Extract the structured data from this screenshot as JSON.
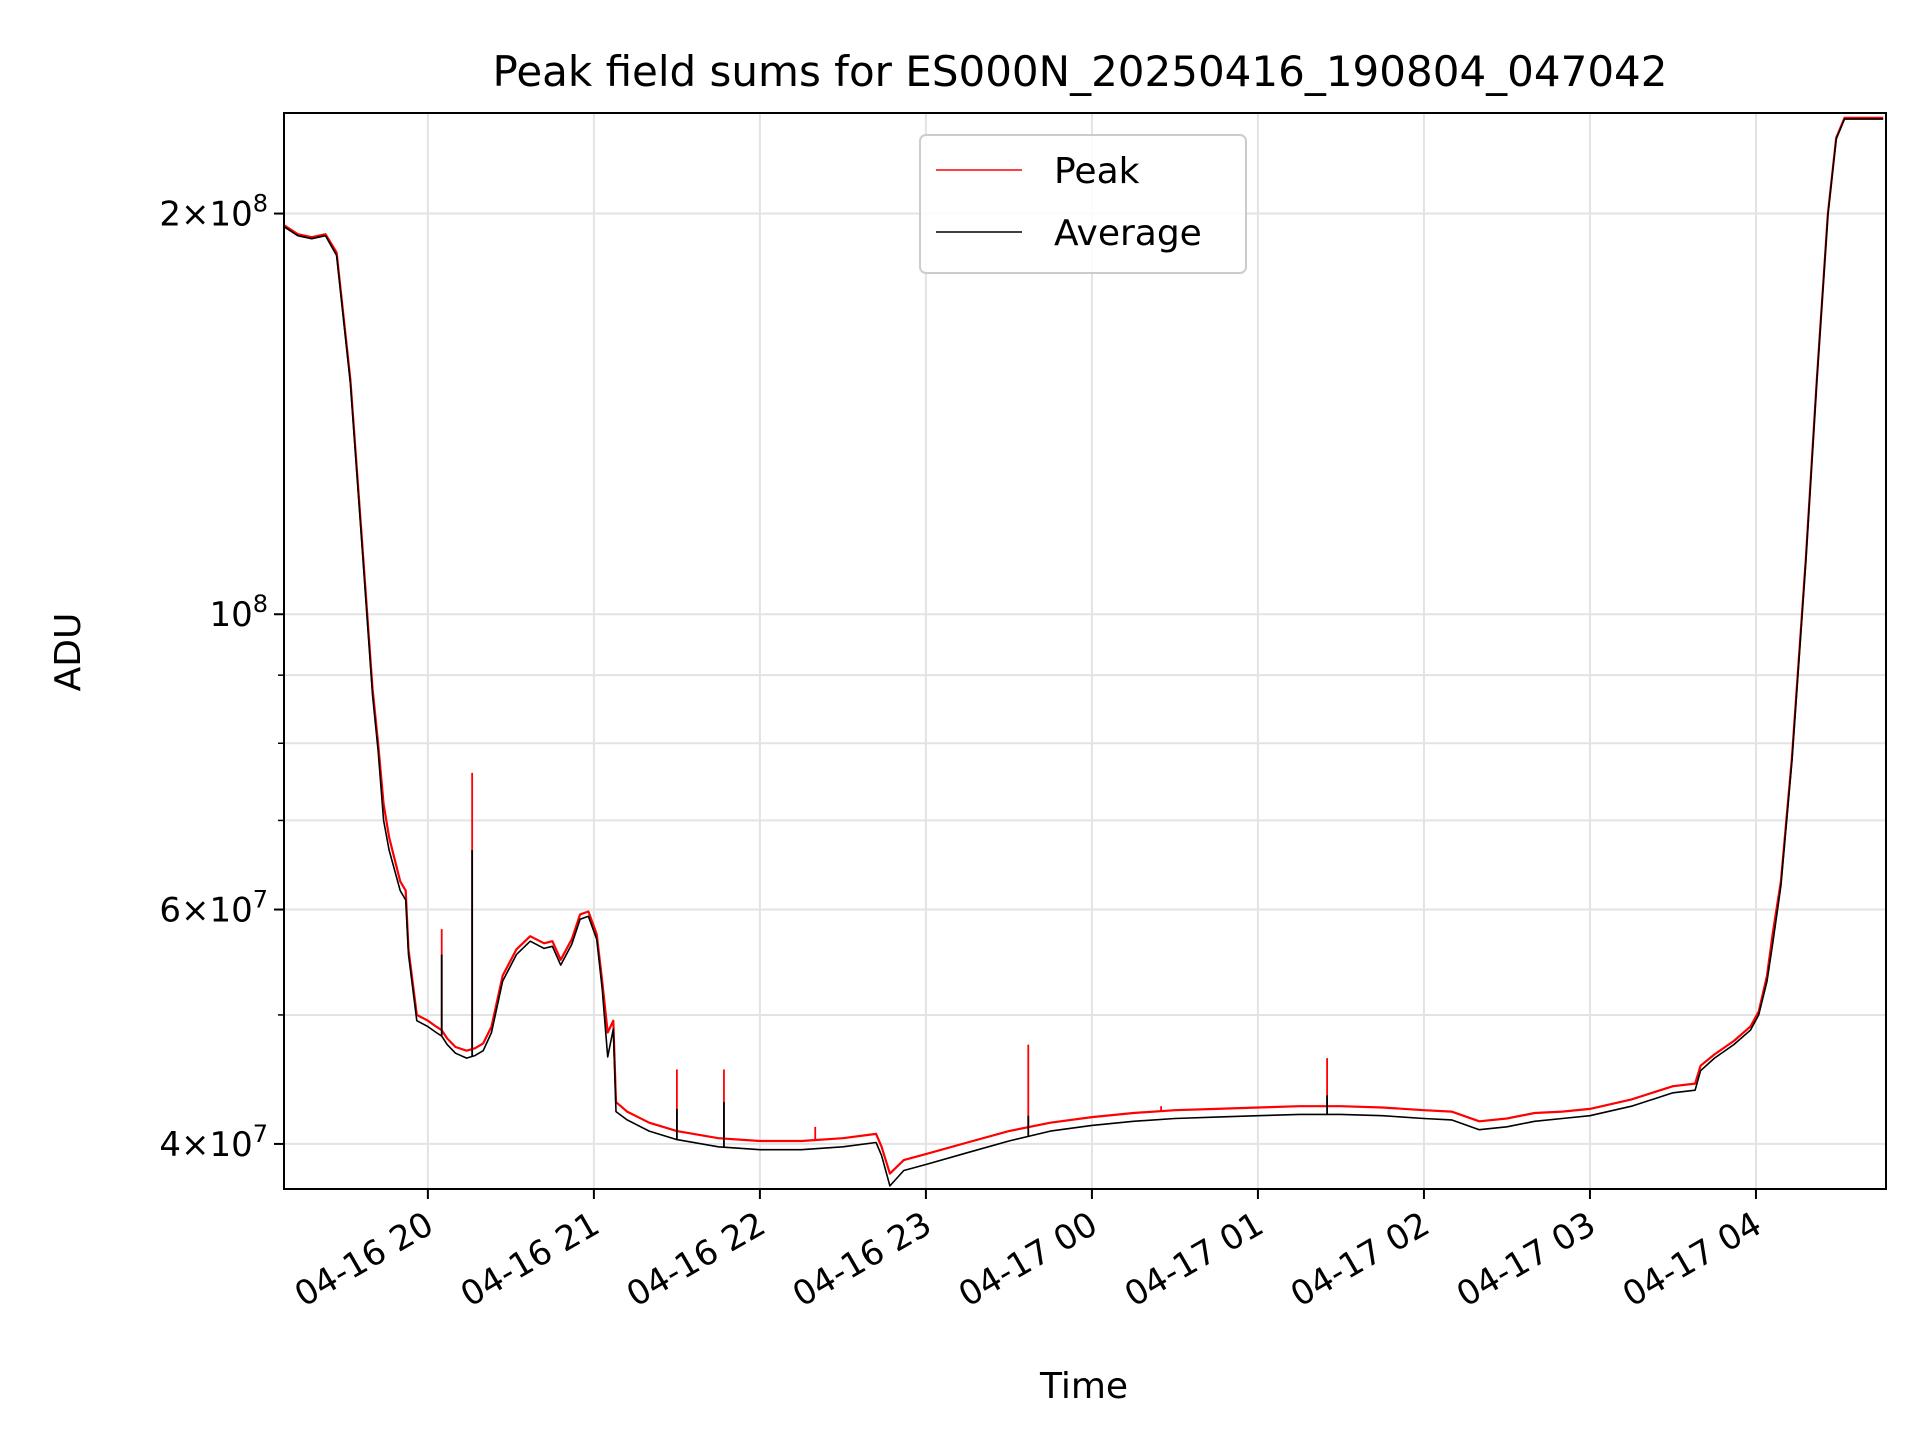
{
  "chart_data": {
    "type": "line",
    "title": "Peak field sums for ES000N_20250416_190804_047042",
    "xlabel": "Time",
    "ylabel": "ADU",
    "x_axis": {
      "kind": "datetime",
      "range": [
        "2025-04-16 19:08",
        "2025-04-17 04:47"
      ],
      "tick_labels": [
        {
          "t": "2025-04-16 20:00",
          "label": "04-16 20"
        },
        {
          "t": "2025-04-16 21:00",
          "label": "04-16 21"
        },
        {
          "t": "2025-04-16 22:00",
          "label": "04-16 22"
        },
        {
          "t": "2025-04-16 23:00",
          "label": "04-16 23"
        },
        {
          "t": "2025-04-17 00:00",
          "label": "04-17 00"
        },
        {
          "t": "2025-04-17 01:00",
          "label": "04-17 01"
        },
        {
          "t": "2025-04-17 02:00",
          "label": "04-17 02"
        },
        {
          "t": "2025-04-17 03:00",
          "label": "04-17 03"
        },
        {
          "t": "2025-04-17 04:00",
          "label": "04-17 04"
        }
      ]
    },
    "y_axis": {
      "scale": "log",
      "range": [
        37000000,
        238000000
      ],
      "major_ticks": [
        {
          "v": 40000000,
          "base": "4",
          "times": "×",
          "exp_base": "10",
          "exp": "7"
        },
        {
          "v": 60000000,
          "base": "6",
          "times": "×",
          "exp_base": "10",
          "exp": "7"
        },
        {
          "v": 100000000,
          "base": "",
          "times": "",
          "exp_base": "10",
          "exp": "8"
        },
        {
          "v": 200000000,
          "base": "2",
          "times": "×",
          "exp_base": "10",
          "exp": "8"
        }
      ],
      "minor_ticks": [
        50000000,
        70000000,
        80000000,
        90000000
      ]
    },
    "grid": true,
    "legend": {
      "placement": "upper center"
    },
    "series": [
      {
        "name": "Peak",
        "color": "#ff0000",
        "points": [
          [
            "2025-04-16 19:08",
            196000000
          ],
          [
            "2025-04-16 19:13",
            193000000
          ],
          [
            "2025-04-16 19:18",
            192000000
          ],
          [
            "2025-04-16 19:23",
            193000000
          ],
          [
            "2025-04-16 19:27",
            187000000
          ],
          [
            "2025-04-16 19:32",
            150000000
          ],
          [
            "2025-04-16 19:36",
            115000000
          ],
          [
            "2025-04-16 19:40",
            88000000
          ],
          [
            "2025-04-16 19:42",
            80000000
          ],
          [
            "2025-04-16 19:44",
            72000000
          ],
          [
            "2025-04-16 19:46",
            68000000
          ],
          [
            "2025-04-16 19:50",
            63000000
          ],
          [
            "2025-04-16 19:52",
            62000000
          ],
          [
            "2025-04-16 19:53",
            56000000
          ],
          [
            "2025-04-16 19:56",
            50000000
          ],
          [
            "2025-04-16 20:00",
            49500000
          ],
          [
            "2025-04-16 20:03",
            49000000
          ],
          [
            "2025-04-16 20:05",
            48700000
          ],
          [
            "2025-04-16 20:07",
            48000000
          ],
          [
            "2025-04-16 20:10",
            47300000
          ],
          [
            "2025-04-16 20:14",
            47000000
          ],
          [
            "2025-04-16 20:17",
            47200000
          ],
          [
            "2025-04-16 20:20",
            47600000
          ],
          [
            "2025-04-16 20:23",
            49000000
          ],
          [
            "2025-04-16 20:27",
            53500000
          ],
          [
            "2025-04-16 20:32",
            56000000
          ],
          [
            "2025-04-16 20:37",
            57300000
          ],
          [
            "2025-04-16 20:42",
            56600000
          ],
          [
            "2025-04-16 20:45",
            56800000
          ],
          [
            "2025-04-16 20:48",
            55000000
          ],
          [
            "2025-04-16 20:52",
            57000000
          ],
          [
            "2025-04-16 20:55",
            59500000
          ],
          [
            "2025-04-16 20:58",
            59800000
          ],
          [
            "2025-04-16 21:01",
            57500000
          ],
          [
            "2025-04-16 21:03",
            53000000
          ],
          [
            "2025-04-16 21:05",
            48500000
          ],
          [
            "2025-04-16 21:07",
            49500000
          ],
          [
            "2025-04-16 21:08",
            43000000
          ],
          [
            "2025-04-16 21:12",
            42300000
          ],
          [
            "2025-04-16 21:20",
            41500000
          ],
          [
            "2025-04-16 21:30",
            40900000
          ],
          [
            "2025-04-16 21:45",
            40400000
          ],
          [
            "2025-04-16 22:00",
            40200000
          ],
          [
            "2025-04-16 22:15",
            40200000
          ],
          [
            "2025-04-16 22:30",
            40400000
          ],
          [
            "2025-04-16 22:42",
            40700000
          ],
          [
            "2025-04-16 22:44",
            39800000
          ],
          [
            "2025-04-16 22:47",
            38000000
          ],
          [
            "2025-04-16 22:52",
            38900000
          ],
          [
            "2025-04-16 23:00",
            39300000
          ],
          [
            "2025-04-16 23:15",
            40100000
          ],
          [
            "2025-04-16 23:30",
            40900000
          ],
          [
            "2025-04-16 23:45",
            41500000
          ],
          [
            "2025-04-17 00:00",
            41900000
          ],
          [
            "2025-04-17 00:15",
            42200000
          ],
          [
            "2025-04-17 00:30",
            42400000
          ],
          [
            "2025-04-17 00:45",
            42500000
          ],
          [
            "2025-04-17 01:00",
            42600000
          ],
          [
            "2025-04-17 01:15",
            42700000
          ],
          [
            "2025-04-17 01:30",
            42700000
          ],
          [
            "2025-04-17 01:45",
            42600000
          ],
          [
            "2025-04-17 02:00",
            42400000
          ],
          [
            "2025-04-17 02:10",
            42300000
          ],
          [
            "2025-04-17 02:20",
            41600000
          ],
          [
            "2025-04-17 02:30",
            41800000
          ],
          [
            "2025-04-17 02:40",
            42200000
          ],
          [
            "2025-04-17 02:50",
            42300000
          ],
          [
            "2025-04-17 03:00",
            42500000
          ],
          [
            "2025-04-17 03:15",
            43200000
          ],
          [
            "2025-04-17 03:30",
            44200000
          ],
          [
            "2025-04-17 03:38",
            44400000
          ],
          [
            "2025-04-17 03:40",
            45800000
          ],
          [
            "2025-04-17 03:45",
            46700000
          ],
          [
            "2025-04-17 03:52",
            47800000
          ],
          [
            "2025-04-17 03:58",
            49000000
          ],
          [
            "2025-04-17 04:01",
            50300000
          ],
          [
            "2025-04-17 04:04",
            53500000
          ],
          [
            "2025-04-17 04:06",
            57500000
          ],
          [
            "2025-04-17 04:09",
            63000000
          ],
          [
            "2025-04-17 04:13",
            78000000
          ],
          [
            "2025-04-17 04:18",
            110000000
          ],
          [
            "2025-04-17 04:22",
            150000000
          ],
          [
            "2025-04-17 04:26",
            200000000
          ],
          [
            "2025-04-17 04:29",
            228000000
          ],
          [
            "2025-04-17 04:32",
            236000000
          ],
          [
            "2025-04-17 04:46",
            236000000
          ]
        ],
        "spikes": [
          [
            "2025-04-16 20:05",
            58000000
          ],
          [
            "2025-04-16 20:16",
            76000000
          ],
          [
            "2025-04-16 21:30",
            45500000
          ],
          [
            "2025-04-16 21:47",
            45500000
          ],
          [
            "2025-04-16 22:20",
            41200000
          ],
          [
            "2025-04-16 23:37",
            47500000
          ],
          [
            "2025-04-17 00:25",
            42700000
          ],
          [
            "2025-04-17 01:25",
            46400000
          ]
        ]
      },
      {
        "name": "Average",
        "color": "#000000",
        "points": [
          [
            "2025-04-16 19:08",
            195500000
          ],
          [
            "2025-04-16 19:13",
            192500000
          ],
          [
            "2025-04-16 19:18",
            191500000
          ],
          [
            "2025-04-16 19:23",
            192500000
          ],
          [
            "2025-04-16 19:27",
            186000000
          ],
          [
            "2025-04-16 19:32",
            149000000
          ],
          [
            "2025-04-16 19:36",
            114000000
          ],
          [
            "2025-04-16 19:40",
            87000000
          ],
          [
            "2025-04-16 19:42",
            79000000
          ],
          [
            "2025-04-16 19:44",
            70000000
          ],
          [
            "2025-04-16 19:46",
            66500000
          ],
          [
            "2025-04-16 19:50",
            62000000
          ],
          [
            "2025-04-16 19:52",
            61000000
          ],
          [
            "2025-04-16 19:53",
            55500000
          ],
          [
            "2025-04-16 19:56",
            49500000
          ],
          [
            "2025-04-16 20:00",
            49000000
          ],
          [
            "2025-04-16 20:03",
            48500000
          ],
          [
            "2025-04-16 20:05",
            48200000
          ],
          [
            "2025-04-16 20:07",
            47500000
          ],
          [
            "2025-04-16 20:10",
            46800000
          ],
          [
            "2025-04-16 20:14",
            46400000
          ],
          [
            "2025-04-16 20:17",
            46600000
          ],
          [
            "2025-04-16 20:20",
            47000000
          ],
          [
            "2025-04-16 20:23",
            48500000
          ],
          [
            "2025-04-16 20:27",
            53000000
          ],
          [
            "2025-04-16 20:32",
            55500000
          ],
          [
            "2025-04-16 20:37",
            56800000
          ],
          [
            "2025-04-16 20:42",
            56100000
          ],
          [
            "2025-04-16 20:45",
            56300000
          ],
          [
            "2025-04-16 20:48",
            54500000
          ],
          [
            "2025-04-16 20:52",
            56500000
          ],
          [
            "2025-04-16 20:55",
            59000000
          ],
          [
            "2025-04-16 20:58",
            59300000
          ],
          [
            "2025-04-16 21:01",
            57000000
          ],
          [
            "2025-04-16 21:03",
            52300000
          ],
          [
            "2025-04-16 21:05",
            46500000
          ],
          [
            "2025-04-16 21:07",
            48800000
          ],
          [
            "2025-04-16 21:08",
            42300000
          ],
          [
            "2025-04-16 21:12",
            41700000
          ],
          [
            "2025-04-16 21:20",
            40900000
          ],
          [
            "2025-04-16 21:30",
            40300000
          ],
          [
            "2025-04-16 21:45",
            39800000
          ],
          [
            "2025-04-16 22:00",
            39600000
          ],
          [
            "2025-04-16 22:15",
            39600000
          ],
          [
            "2025-04-16 22:30",
            39800000
          ],
          [
            "2025-04-16 22:42",
            40100000
          ],
          [
            "2025-04-16 22:44",
            39200000
          ],
          [
            "2025-04-16 22:47",
            37200000
          ],
          [
            "2025-04-16 22:52",
            38200000
          ],
          [
            "2025-04-16 23:00",
            38600000
          ],
          [
            "2025-04-16 23:15",
            39400000
          ],
          [
            "2025-04-16 23:30",
            40200000
          ],
          [
            "2025-04-16 23:45",
            40900000
          ],
          [
            "2025-04-17 00:00",
            41300000
          ],
          [
            "2025-04-17 00:15",
            41600000
          ],
          [
            "2025-04-17 00:30",
            41800000
          ],
          [
            "2025-04-17 00:45",
            41900000
          ],
          [
            "2025-04-17 01:00",
            42000000
          ],
          [
            "2025-04-17 01:15",
            42100000
          ],
          [
            "2025-04-17 01:30",
            42100000
          ],
          [
            "2025-04-17 01:45",
            42000000
          ],
          [
            "2025-04-17 02:00",
            41800000
          ],
          [
            "2025-04-17 02:10",
            41700000
          ],
          [
            "2025-04-17 02:20",
            41000000
          ],
          [
            "2025-04-17 02:30",
            41200000
          ],
          [
            "2025-04-17 02:40",
            41600000
          ],
          [
            "2025-04-17 02:50",
            41800000
          ],
          [
            "2025-04-17 03:00",
            42000000
          ],
          [
            "2025-04-17 03:15",
            42700000
          ],
          [
            "2025-04-17 03:30",
            43700000
          ],
          [
            "2025-04-17 03:38",
            43900000
          ],
          [
            "2025-04-17 03:40",
            45400000
          ],
          [
            "2025-04-17 03:45",
            46400000
          ],
          [
            "2025-04-17 03:52",
            47500000
          ],
          [
            "2025-04-17 03:58",
            48700000
          ],
          [
            "2025-04-17 04:01",
            50000000
          ],
          [
            "2025-04-17 04:04",
            53000000
          ],
          [
            "2025-04-17 04:06",
            56500000
          ],
          [
            "2025-04-17 04:09",
            62500000
          ],
          [
            "2025-04-17 04:13",
            77500000
          ],
          [
            "2025-04-17 04:18",
            109500000
          ],
          [
            "2025-04-17 04:22",
            149500000
          ],
          [
            "2025-04-17 04:26",
            199500000
          ],
          [
            "2025-04-17 04:29",
            227500000
          ],
          [
            "2025-04-17 04:32",
            235500000
          ],
          [
            "2025-04-17 04:46",
            235500000
          ]
        ],
        "spikes": [
          [
            "2025-04-16 20:05",
            55500000
          ],
          [
            "2025-04-16 20:16",
            66500000
          ],
          [
            "2025-04-16 21:30",
            42500000
          ],
          [
            "2025-04-16 21:47",
            43000000
          ],
          [
            "2025-04-16 23:37",
            42000000
          ],
          [
            "2025-04-17 01:25",
            43500000
          ]
        ]
      }
    ]
  }
}
